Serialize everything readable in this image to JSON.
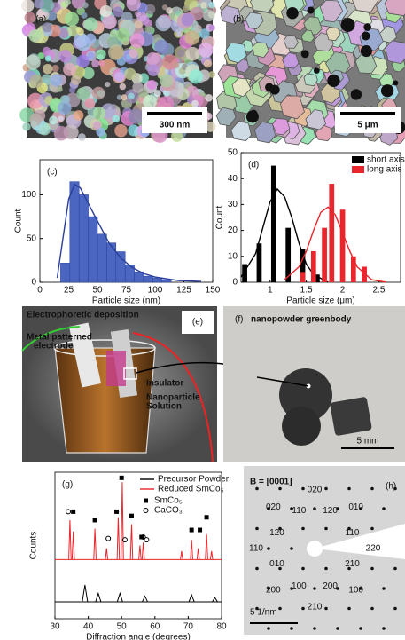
{
  "panels": [
    {
      "label": "(a)",
      "scale_bar": "300 nm"
    },
    {
      "label": "(b)",
      "scale_bar": "5 μm"
    },
    {
      "label": "(e)",
      "title": "Electrophoretic deposition",
      "labels": [
        "Metal patterned",
        "electrode",
        "Insulator",
        "Nanoparticle",
        "Solution"
      ]
    },
    {
      "label": "(f)",
      "title": "nanopowder greenbody",
      "scale_bar": "5 mm"
    },
    {
      "label": "(h)",
      "title": "B = [0001]",
      "scale_bar": "5 1/nm",
      "spot_labels": [
        "020",
        "120",
        "010",
        "110",
        "220",
        "210",
        "100",
        "200",
        "210",
        "100",
        "200",
        "010",
        "110",
        "120",
        "020",
        "110"
      ]
    }
  ],
  "chart_data": [
    {
      "type": "histogram",
      "panel_label": "(c)",
      "x_label": "Particle size (nm)",
      "y_label": "Count",
      "bins": [
        18,
        26,
        34,
        42,
        50,
        58,
        66,
        74,
        82,
        90,
        98,
        106,
        114
      ],
      "counts": [
        22,
        115,
        100,
        75,
        55,
        45,
        35,
        20,
        12,
        7,
        5,
        3
      ],
      "color": "#4a66c0",
      "fit_curve": {
        "x": [
          15,
          20,
          25,
          30,
          35,
          40,
          50,
          60,
          70,
          80,
          90,
          100,
          120,
          140
        ],
        "y": [
          5,
          50,
          95,
          112,
          108,
          95,
          70,
          45,
          28,
          17,
          10,
          6,
          2,
          1
        ]
      },
      "fit_color": "#2a3f9a",
      "xlim": [
        0,
        150
      ],
      "xticks": [
        0,
        25,
        50,
        75,
        100,
        125,
        150
      ],
      "ylim": [
        0,
        140
      ],
      "yticks": [
        0,
        50,
        100
      ]
    },
    {
      "type": "bar",
      "panel_label": "(d)",
      "x_label": "Particle size (μm)",
      "y_label": "Count",
      "legend": "upper right",
      "series": [
        {
          "name": "short axis",
          "color": "#000000",
          "x": [
            0.65,
            0.85,
            1.05,
            1.25,
            1.45,
            1.65
          ],
          "values": [
            7,
            15,
            45,
            21,
            13,
            3
          ],
          "fit_curve": {
            "x": [
              0.6,
              0.8,
              0.9,
              1.0,
              1.1,
              1.2,
              1.3,
              1.4,
              1.5,
              1.6,
              1.8
            ],
            "y": [
              2,
              11,
              21,
              31,
              36,
              33,
              25,
              15,
              7,
              3,
              0
            ]
          }
        },
        {
          "name": "long axis",
          "color": "#e8262b",
          "x": [
            1.45,
            1.6,
            1.75,
            1.85,
            2.0,
            2.15,
            2.3
          ],
          "values": [
            4,
            12,
            21,
            38,
            28,
            10,
            6
          ],
          "fit_curve": {
            "x": [
              1.2,
              1.4,
              1.5,
              1.6,
              1.7,
              1.8,
              1.9,
              2.0,
              2.1,
              2.2,
              2.4,
              2.6
            ],
            "y": [
              1,
              6,
              12,
              20,
              27,
              29,
              26,
              19,
              12,
              6,
              1,
              0
            ]
          }
        }
      ],
      "xlim": [
        0.6,
        2.8
      ],
      "xticks": [
        1,
        1.5,
        2,
        2.5
      ],
      "ylim": [
        0,
        50
      ],
      "yticks": [
        0,
        10,
        20,
        30,
        40,
        50
      ]
    },
    {
      "type": "xrd",
      "panel_label": "(g)",
      "x_label": "Diffraction angle (degrees)",
      "y_label": "Counts",
      "series": [
        {
          "name": "Precursor Powder",
          "color": "#000000",
          "baseline": 12,
          "peaks": {
            "x": [
              39,
              43,
              49.5,
              57,
              71,
              78
            ],
            "values": [
              12,
              6,
              6,
              4,
              5,
              3
            ]
          }
        },
        {
          "name": "Reduced SmCo₅",
          "color": "#e8262b",
          "baseline": 42,
          "peaks": {
            "x": [
              34.5,
              35.5,
              42,
              45.5,
              49,
              50.2,
              53,
              55.5,
              56.5,
              68,
              71,
              73,
              75.5,
              77
            ],
            "values": [
              28,
              20,
              22,
              8,
              30,
              55,
              25,
              10,
              12,
              6,
              14,
              8,
              18,
              6
            ]
          }
        }
      ],
      "markers": [
        {
          "name": "SmCo₅",
          "shape": "square",
          "x": [
            35.5,
            42,
            48.5,
            50,
            53,
            56,
            71,
            73.5,
            75.5
          ],
          "y": [
            76,
            70,
            76,
            100,
            73,
            58,
            63,
            63,
            72
          ]
        },
        {
          "name": "CaCO₃",
          "shape": "circle",
          "x": [
            34,
            46,
            51,
            56.5,
            57.5
          ],
          "y": [
            76,
            57,
            56,
            58,
            56
          ]
        }
      ],
      "xlim": [
        30,
        80
      ],
      "xticks": [
        30,
        40,
        50,
        60,
        70,
        80
      ],
      "ylim": [
        0,
        104
      ]
    }
  ]
}
